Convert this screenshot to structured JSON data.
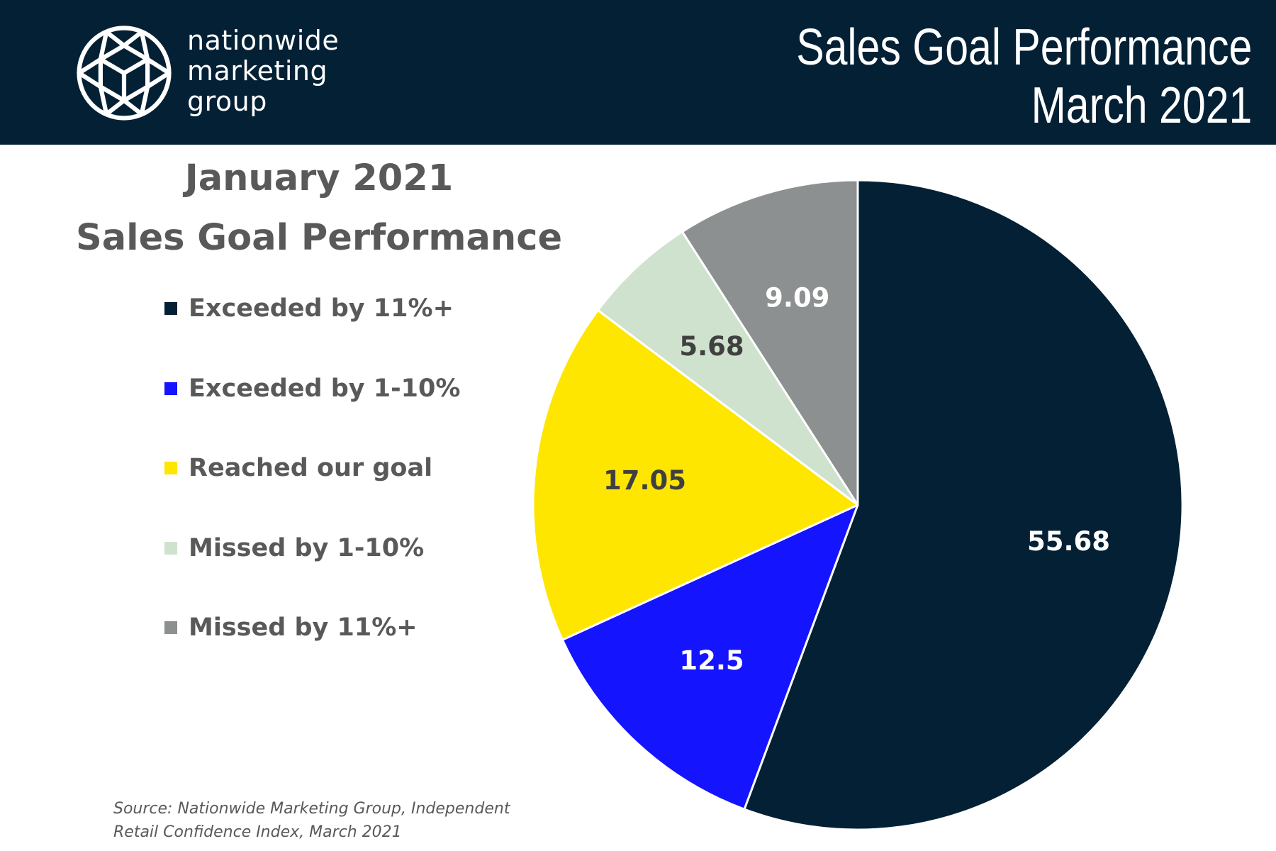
{
  "header": {
    "logo_lines": [
      "nationwide",
      "marketing",
      "group"
    ],
    "title_lines": [
      "Sales Goal Performance",
      "March 2021"
    ]
  },
  "chart_data": {
    "type": "pie",
    "title_lines": [
      "January 2021",
      "Sales Goal Performance"
    ],
    "legend_position": "left",
    "slices": [
      {
        "label": "Exceeded by 11%+",
        "value": 55.68,
        "value_text": "55.68",
        "color": "#032035",
        "text_color": "#ffffff"
      },
      {
        "label": "Exceeded by 1-10%",
        "value": 12.5,
        "value_text": "12.5",
        "color": "#1414ff",
        "text_color": "#ffffff"
      },
      {
        "label": "Reached our goal",
        "value": 17.05,
        "value_text": "17.05",
        "color": "#ffe600",
        "text_color": "#404040"
      },
      {
        "label": "Missed by 1-10%",
        "value": 5.68,
        "value_text": "5.68",
        "color": "#cfe2cd",
        "text_color": "#404040"
      },
      {
        "label": "Missed by 11%+",
        "value": 9.09,
        "value_text": "9.09",
        "color": "#8c9090",
        "text_color": "#ffffff"
      }
    ]
  },
  "source": {
    "lines": [
      "Source: Nationwide Marketing Group, Independent",
      "Retail Confidence Index, March 2021"
    ]
  }
}
